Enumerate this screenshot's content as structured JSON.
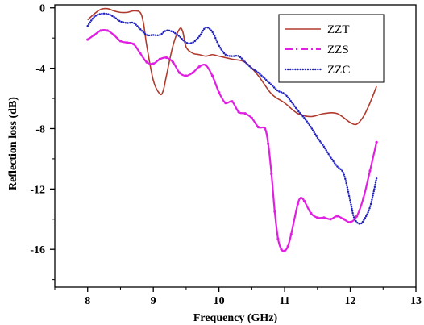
{
  "chart_data": {
    "type": "line",
    "xlabel": "Frequency (GHz)",
    "ylabel": "Reflection loss (dB)",
    "xlim": [
      7.5,
      13
    ],
    "ylim": [
      -18.5,
      0.2
    ],
    "xticks": [
      8,
      9,
      10,
      11,
      12,
      13
    ],
    "xtick_labels": [
      "8",
      "9",
      "10",
      "11",
      "12",
      "13"
    ],
    "yticks": [
      0,
      -4,
      -8,
      -12,
      -16
    ],
    "ytick_labels": [
      "0",
      "-4",
      "-8",
      "-12",
      "-16"
    ],
    "grid": false,
    "legend_position": "top-right",
    "series": [
      {
        "name": "ZZT",
        "color": "#b03a2e",
        "style": "solid",
        "x": [
          8.0,
          8.1,
          8.2,
          8.3,
          8.4,
          8.5,
          8.6,
          8.7,
          8.8,
          8.85,
          8.9,
          9.0,
          9.1,
          9.15,
          9.2,
          9.3,
          9.4,
          9.45,
          9.5,
          9.6,
          9.7,
          9.8,
          9.9,
          10.0,
          10.2,
          10.4,
          10.6,
          10.8,
          11.0,
          11.2,
          11.4,
          11.6,
          11.8,
          12.0,
          12.1,
          12.2,
          12.3,
          12.4
        ],
        "y": [
          -0.8,
          -0.4,
          -0.1,
          -0.05,
          -0.2,
          -0.3,
          -0.3,
          -0.2,
          -0.3,
          -1.0,
          -2.5,
          -4.8,
          -5.7,
          -5.5,
          -4.5,
          -2.5,
          -1.4,
          -1.6,
          -2.6,
          -3.0,
          -3.1,
          -3.2,
          -3.1,
          -3.2,
          -3.4,
          -3.6,
          -4.5,
          -5.7,
          -6.3,
          -7.0,
          -7.2,
          -7.0,
          -7.0,
          -7.6,
          -7.7,
          -7.2,
          -6.3,
          -5.2
        ]
      },
      {
        "name": "ZZS",
        "color": "#e020e0",
        "style": "dash-dot",
        "x": [
          8.0,
          8.1,
          8.2,
          8.3,
          8.4,
          8.5,
          8.6,
          8.7,
          8.8,
          8.9,
          9.0,
          9.1,
          9.2,
          9.3,
          9.4,
          9.5,
          9.6,
          9.7,
          9.8,
          9.9,
          10.0,
          10.1,
          10.2,
          10.3,
          10.4,
          10.5,
          10.6,
          10.7,
          10.75,
          10.8,
          10.85,
          10.9,
          10.95,
          11.0,
          11.05,
          11.1,
          11.2,
          11.25,
          11.3,
          11.4,
          11.5,
          11.6,
          11.7,
          11.8,
          11.9,
          12.0,
          12.1,
          12.2,
          12.3,
          12.4
        ],
        "y": [
          -2.1,
          -1.8,
          -1.5,
          -1.5,
          -1.8,
          -2.2,
          -2.3,
          -2.4,
          -3.0,
          -3.6,
          -3.7,
          -3.4,
          -3.3,
          -3.6,
          -4.3,
          -4.5,
          -4.3,
          -3.9,
          -3.8,
          -4.5,
          -5.6,
          -6.3,
          -6.2,
          -6.9,
          -7.0,
          -7.3,
          -7.9,
          -8.0,
          -9.0,
          -11.0,
          -13.5,
          -15.3,
          -16.0,
          -16.1,
          -15.8,
          -15.0,
          -13.0,
          -12.6,
          -12.8,
          -13.6,
          -13.9,
          -13.9,
          -14.0,
          -13.8,
          -14.0,
          -14.2,
          -13.8,
          -12.6,
          -10.8,
          -8.9
        ]
      },
      {
        "name": "ZZC",
        "color": "#2020c0",
        "style": "dotted",
        "x": [
          8.0,
          8.1,
          8.2,
          8.3,
          8.4,
          8.5,
          8.6,
          8.7,
          8.8,
          8.9,
          9.0,
          9.1,
          9.2,
          9.3,
          9.4,
          9.5,
          9.6,
          9.7,
          9.8,
          9.9,
          10.0,
          10.1,
          10.2,
          10.3,
          10.4,
          10.5,
          10.6,
          10.7,
          10.8,
          10.9,
          11.0,
          11.1,
          11.2,
          11.3,
          11.4,
          11.5,
          11.6,
          11.7,
          11.8,
          11.9,
          12.0,
          12.05,
          12.1,
          12.15,
          12.2,
          12.3,
          12.4
        ],
        "y": [
          -1.2,
          -0.6,
          -0.4,
          -0.4,
          -0.6,
          -0.9,
          -1.0,
          -1.0,
          -1.4,
          -1.8,
          -1.8,
          -1.8,
          -1.5,
          -1.6,
          -1.9,
          -2.3,
          -2.3,
          -1.9,
          -1.3,
          -1.6,
          -2.5,
          -3.1,
          -3.2,
          -3.2,
          -3.6,
          -4.0,
          -4.3,
          -4.7,
          -5.1,
          -5.5,
          -5.7,
          -6.2,
          -6.8,
          -7.3,
          -7.9,
          -8.6,
          -9.2,
          -9.9,
          -10.5,
          -11.0,
          -12.8,
          -13.8,
          -14.2,
          -14.3,
          -14.1,
          -13.2,
          -11.3
        ]
      }
    ]
  }
}
